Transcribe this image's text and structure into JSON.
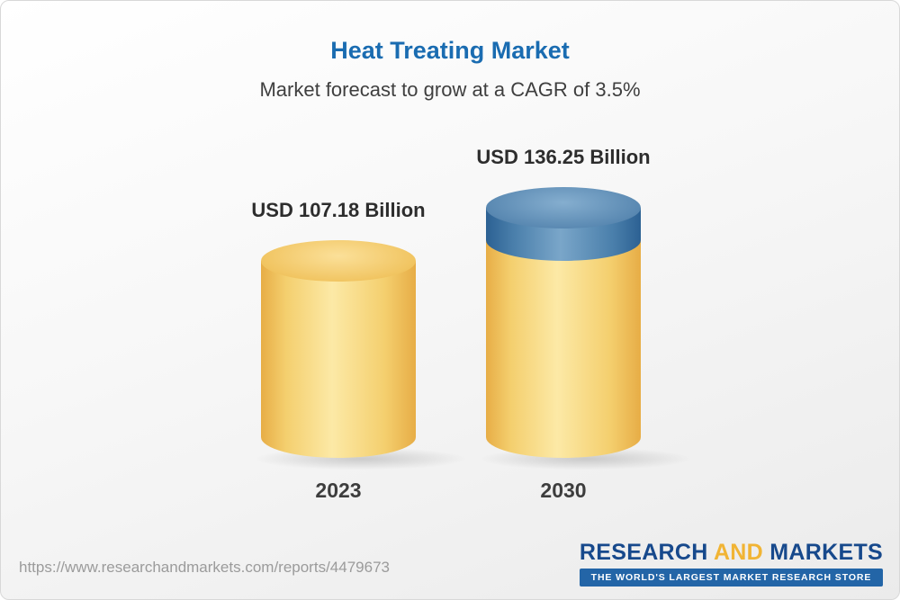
{
  "card": {
    "title": "Heat Treating Market",
    "subtitle": "Market forecast to grow at a CAGR of 3.5%"
  },
  "chart_data": {
    "type": "bar",
    "variant": "3d-cylinder",
    "title": "Heat Treating Market",
    "subtitle": "Market forecast to grow at a CAGR of 3.5%",
    "cagr": "3.5%",
    "unit": "USD Billion",
    "categories": [
      "2023",
      "2030"
    ],
    "values": [
      107.18,
      136.25
    ],
    "value_labels": [
      "USD 107.18 Billion",
      "USD 136.25 Billion"
    ],
    "legend": "none",
    "axes": "none",
    "colors": {
      "bar_base": "#f4cf6e",
      "bar_growth_segment": "#4a7fab",
      "title_text": "#1a6cb1"
    }
  },
  "footer": {
    "url": "https://www.researchandmarkets.com/reports/4479673",
    "logo": {
      "research": "RESEARCH",
      "and": "AND",
      "markets": "MARKETS",
      "tagline": "THE WORLD'S LARGEST MARKET RESEARCH STORE"
    }
  }
}
